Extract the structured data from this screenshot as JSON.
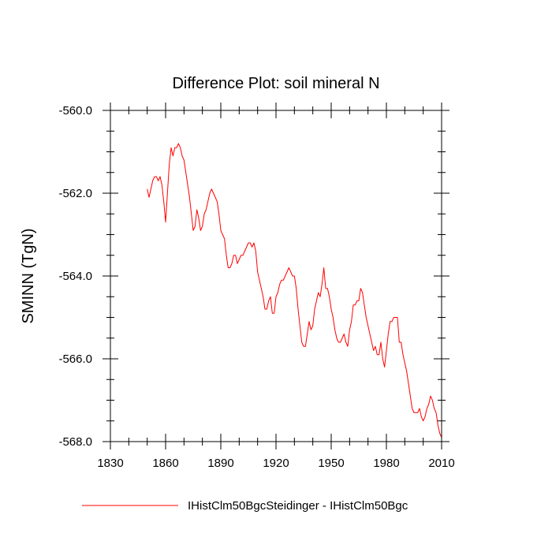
{
  "chart_data": {
    "type": "line",
    "title": "Difference Plot: soil mineral N",
    "xlabel": "",
    "ylabel": "SMINN  (TgN)",
    "xlim": [
      1830,
      2010
    ],
    "ylim": [
      -568.0,
      -560.0
    ],
    "x_ticks": [
      1830,
      1860,
      1890,
      1920,
      1950,
      1980,
      2010
    ],
    "y_ticks": [
      -560.0,
      -562.0,
      -564.0,
      -566.0,
      -568.0
    ],
    "x_tick_labels": [
      "1830",
      "1860",
      "1890",
      "1920",
      "1950",
      "1980",
      "2010"
    ],
    "y_tick_labels": [
      "-560.0",
      "-562.0",
      "-564.0",
      "-566.0",
      "-568.0"
    ],
    "grid": false,
    "legend_position": "bottom",
    "series": [
      {
        "name": "IHistClm50BgcSteidinger - IHistClm50Bgc",
        "color": "#ff0000",
        "x": [
          1850,
          1851,
          1852,
          1853,
          1854,
          1855,
          1856,
          1857,
          1858,
          1859,
          1860,
          1861,
          1862,
          1863,
          1864,
          1865,
          1866,
          1867,
          1868,
          1869,
          1870,
          1871,
          1872,
          1873,
          1874,
          1875,
          1876,
          1877,
          1878,
          1879,
          1880,
          1881,
          1882,
          1883,
          1884,
          1885,
          1886,
          1887,
          1888,
          1889,
          1890,
          1891,
          1892,
          1893,
          1894,
          1895,
          1896,
          1897,
          1898,
          1899,
          1900,
          1901,
          1902,
          1903,
          1904,
          1905,
          1906,
          1907,
          1908,
          1909,
          1910,
          1911,
          1912,
          1913,
          1914,
          1915,
          1916,
          1917,
          1918,
          1919,
          1920,
          1921,
          1922,
          1923,
          1924,
          1925,
          1926,
          1927,
          1928,
          1929,
          1930,
          1931,
          1932,
          1933,
          1934,
          1935,
          1936,
          1937,
          1938,
          1939,
          1940,
          1941,
          1942,
          1943,
          1944,
          1945,
          1946,
          1947,
          1948,
          1949,
          1950,
          1951,
          1952,
          1953,
          1954,
          1955,
          1956,
          1957,
          1958,
          1959,
          1960,
          1961,
          1962,
          1963,
          1964,
          1965,
          1966,
          1967,
          1968,
          1969,
          1970,
          1971,
          1972,
          1973,
          1974,
          1975,
          1976,
          1977,
          1978,
          1979,
          1980,
          1981,
          1982,
          1983,
          1984,
          1985,
          1986,
          1987,
          1988,
          1989,
          1990,
          1991,
          1992,
          1993,
          1994,
          1995,
          1996,
          1997,
          1998,
          1999,
          2000,
          2001,
          2002,
          2003,
          2004,
          2005,
          2006,
          2007,
          2008,
          2009,
          2010
        ],
        "y": [
          -561.9,
          -562.1,
          -561.9,
          -561.7,
          -561.6,
          -561.6,
          -561.7,
          -561.6,
          -561.8,
          -562.2,
          -562.7,
          -562.0,
          -561.3,
          -560.9,
          -561.1,
          -560.9,
          -560.9,
          -560.8,
          -560.9,
          -561.1,
          -561.2,
          -561.5,
          -561.8,
          -562.1,
          -562.5,
          -562.9,
          -562.8,
          -562.4,
          -562.6,
          -562.9,
          -562.8,
          -562.5,
          -562.4,
          -562.2,
          -562.0,
          -561.9,
          -562.0,
          -562.1,
          -562.2,
          -562.5,
          -562.9,
          -563.0,
          -563.1,
          -563.5,
          -563.8,
          -563.8,
          -563.7,
          -563.5,
          -563.5,
          -563.7,
          -563.6,
          -563.5,
          -563.5,
          -563.4,
          -563.3,
          -563.2,
          -563.2,
          -563.3,
          -563.2,
          -563.4,
          -563.9,
          -564.1,
          -564.3,
          -564.5,
          -564.8,
          -564.8,
          -564.6,
          -564.5,
          -564.9,
          -564.9,
          -564.5,
          -564.4,
          -564.2,
          -564.1,
          -564.1,
          -564.0,
          -563.9,
          -563.8,
          -563.9,
          -564.0,
          -564.0,
          -564.3,
          -564.8,
          -565.2,
          -565.6,
          -565.7,
          -565.7,
          -565.4,
          -565.1,
          -565.3,
          -565.2,
          -564.8,
          -564.6,
          -564.4,
          -564.5,
          -564.2,
          -563.8,
          -564.3,
          -564.3,
          -564.5,
          -564.8,
          -565.0,
          -565.3,
          -565.5,
          -565.6,
          -565.6,
          -565.5,
          -565.4,
          -565.6,
          -565.7,
          -565.3,
          -565.1,
          -564.7,
          -564.7,
          -564.6,
          -564.6,
          -564.3,
          -564.4,
          -564.7,
          -565.0,
          -565.2,
          -565.4,
          -565.6,
          -565.8,
          -565.7,
          -565.9,
          -565.9,
          -565.6,
          -566.0,
          -566.2,
          -565.8,
          -565.4,
          -565.1,
          -565.1,
          -565.0,
          -565.0,
          -565.0,
          -565.6,
          -565.6,
          -565.9,
          -566.1,
          -566.3,
          -566.6,
          -566.9,
          -567.2,
          -567.3,
          -567.3,
          -567.3,
          -567.2,
          -567.4,
          -567.5,
          -567.4,
          -567.2,
          -567.1,
          -566.9,
          -567.0,
          -567.2,
          -567.3,
          -567.6,
          -567.8,
          -567.9
        ]
      }
    ]
  }
}
